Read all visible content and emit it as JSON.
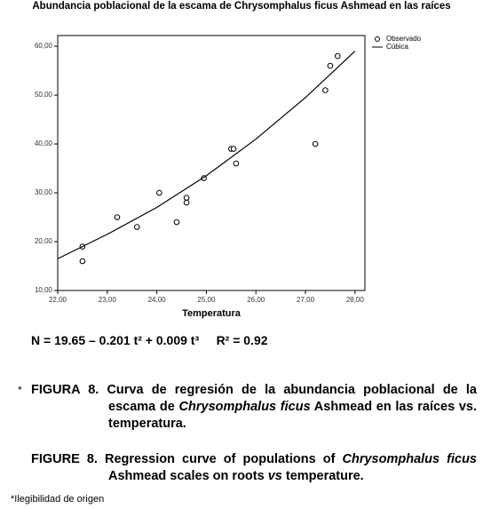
{
  "chart_data": {
    "type": "scatter",
    "title": "Abundancia poblacional de la escama de  Chrysomphalus ficus Ashmead en las raíces",
    "x_label": "Temperatura",
    "xlim": [
      22,
      28.2
    ],
    "ylim": [
      10,
      62.2
    ],
    "xticks": [
      {
        "value": 22,
        "label": "22,00"
      },
      {
        "value": 23,
        "label": "23,00"
      },
      {
        "value": 24,
        "label": "24,00"
      },
      {
        "value": 25,
        "label": "25,00"
      },
      {
        "value": 26,
        "label": "26,00"
      },
      {
        "value": 27,
        "label": "27,00"
      },
      {
        "value": 28,
        "label": "28,00"
      }
    ],
    "yticks": [
      {
        "value": 10,
        "label": "10,00"
      },
      {
        "value": 20,
        "label": "20,00"
      },
      {
        "value": 30,
        "label": "30,00"
      },
      {
        "value": 40,
        "label": "40,00"
      },
      {
        "value": 50,
        "label": "50,00"
      },
      {
        "value": 60,
        "label": "60,00"
      }
    ],
    "legend": "top-right",
    "series": [
      {
        "name": "Observado",
        "kind": "points",
        "color": "#000000",
        "x": [
          22.5,
          22.5,
          23.2,
          23.6,
          24.05,
          24.4,
          24.6,
          24.6,
          24.95,
          25.5,
          25.55,
          25.6,
          27.2,
          27.4,
          27.5,
          27.65
        ],
        "values": [
          19,
          16,
          25,
          23,
          30,
          24,
          28,
          29,
          33,
          39,
          39,
          36,
          40,
          51,
          56,
          58
        ]
      },
      {
        "name": "Cúbica",
        "kind": "line",
        "color": "#000000",
        "x": [
          22,
          23,
          24,
          25,
          26,
          27,
          28
        ],
        "values": [
          16.5,
          21.5,
          27,
          33.5,
          41,
          49.5,
          59
        ]
      }
    ]
  },
  "equation": "N = 19.65 – 0.201 t² + 0.009 t³     R² = 0.92",
  "caption_es": {
    "marker": "*",
    "parts": [
      "FIGURA 8. Curva de regresión de la abundancia poblacional de la escama de ",
      "Chrysomphalus ficus",
      " Ashmead en las raíces vs. temperatura."
    ]
  },
  "caption_en": {
    "parts": [
      "FIGURE 8. Regression curve of populations of ",
      "Chrysomphalus ficus",
      " Ashmead scales on roots ",
      "vs",
      " temperature."
    ]
  },
  "footnote": "*Ilegibilidad de origen"
}
